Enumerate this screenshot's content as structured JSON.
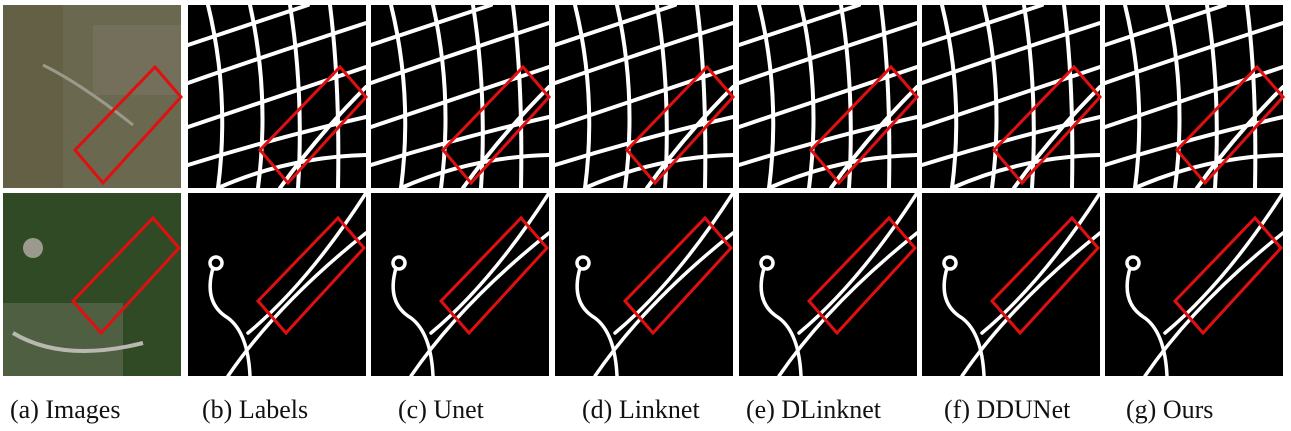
{
  "captions": [
    "(a) Images",
    "(b) Labels",
    "(c) Unet",
    "(d) Linknet",
    "(e) DLinknet",
    "(f) DDUNet",
    "(g) Ours"
  ]
}
